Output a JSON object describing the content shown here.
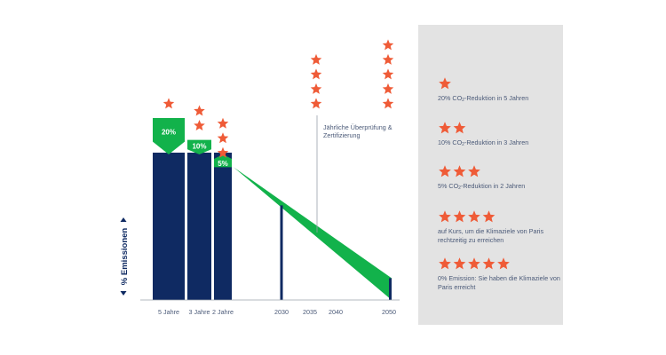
{
  "chart_data": {
    "type": "bar",
    "categories": [
      "5 Jahre",
      "3 Jahre",
      "2 Jahre"
    ],
    "series": [
      {
        "values": [
          80,
          80,
          80
        ]
      }
    ],
    "reduction_labels": [
      "20%",
      "10%",
      "5%"
    ],
    "bar_top_values": [
      100,
      88,
      73
    ],
    "star_ratings": [
      1,
      2,
      3
    ],
    "x_ticks": [
      "2030",
      "2035",
      "2040",
      "2050"
    ],
    "trajectory": {
      "start_value": 73,
      "markers": [
        {
          "year": "2030",
          "value": 52
        },
        {
          "year": "2050",
          "value": 12
        }
      ],
      "upper_end_value": 12,
      "lower_end_value": 0,
      "star_ratings": [
        4,
        5
      ]
    },
    "annotation": "Jährliche Überprüfung & Zertifizierung",
    "ylabel": "% Emissionen",
    "colors": {
      "bar": "#0f2a62",
      "reduction": "#12b24b",
      "star": "#ef5b37",
      "axis": "#9aa0aa",
      "text": "#4b5a78"
    }
  },
  "legend": {
    "items": [
      {
        "stars": 1,
        "parts": [
          "20% CO",
          "2",
          "-Reduktion in 5 Jahren"
        ]
      },
      {
        "stars": 2,
        "parts": [
          "10% CO",
          "2",
          "-Reduktion in 3 Jahren"
        ]
      },
      {
        "stars": 3,
        "parts": [
          "5% CO",
          "2",
          "-Reduktion in 2 Jahren"
        ]
      },
      {
        "stars": 4,
        "parts": [
          "auf Kurs, um die Klimaziele von Paris rechtzeitig zu erreichen",
          "",
          ""
        ]
      },
      {
        "stars": 5,
        "parts": [
          "0% Emission: Sie haben die Klimaziele von Paris erreicht",
          "",
          ""
        ]
      }
    ]
  }
}
